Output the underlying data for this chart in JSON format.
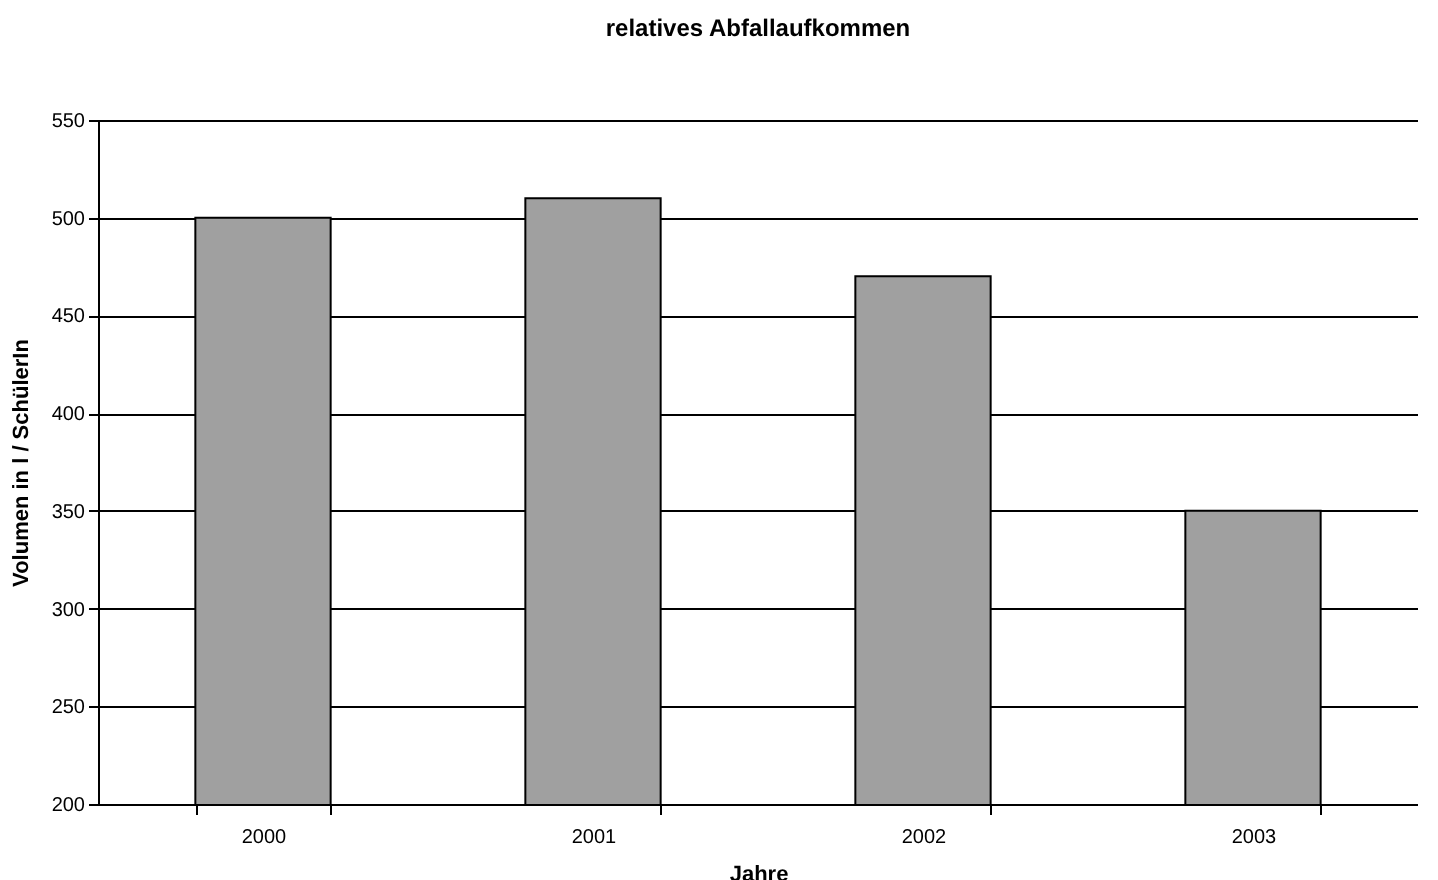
{
  "chart_data": {
    "type": "bar",
    "title": "relatives Abfallaufkommen",
    "xlabel": "Jahre",
    "ylabel": "Volumen in l / SchülerIn",
    "categories": [
      "2000",
      "2001",
      "2002",
      "2003"
    ],
    "values": [
      500,
      510,
      470,
      350
    ],
    "color": "#a0a0a0",
    "ylim": [
      200,
      550
    ],
    "yticks": [
      200,
      250,
      300,
      350,
      400,
      450,
      500,
      550
    ],
    "grid": "y"
  }
}
